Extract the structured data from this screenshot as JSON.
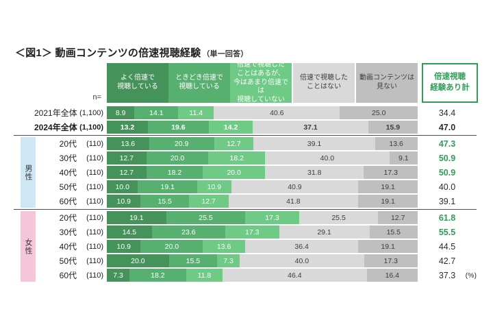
{
  "title": "＜図1＞ 動画コンテンツの倍速視聴経験",
  "title_suffix": "（単一回答）",
  "n_label": "n=",
  "total_header": "倍速視聴\n経験あり計",
  "percent_note": "(%)",
  "colors": {
    "accent_green": "#2e9e57",
    "male_strip_bg": "#cfe7f5",
    "female_strip_bg": "#f5c6da",
    "separator": "#4a4a4a",
    "gray_segment_text": "#3c3c3c"
  },
  "chart_data": {
    "type": "bar",
    "orientation": "horizontal",
    "stacked": true,
    "unit": "%",
    "xlim": [
      0,
      100
    ],
    "title": "動画コンテンツの倍速視聴経験（単一回答）",
    "segments": [
      "よく倍速で視聴している",
      "ときどき倍速で視聴している",
      "倍速で視聴したことはあるが、今はあまり倍速では視聴していない",
      "倍速で視聴したことはない",
      "動画コンテンツは見ない"
    ],
    "segment_header_labels": [
      "よく倍速で\n視聴している",
      "ときどき倍速で\n視聴している",
      "倍速で視聴した\nことはあるが、\n今はあまり倍速では\n視聴していない",
      "倍速で視聴した\nことはない",
      "動画コンテンツは\n見ない"
    ],
    "segment_colors": [
      "#45935b",
      "#57b070",
      "#6eca84",
      "#d9d9d9",
      "#bfbfbf"
    ],
    "segment_text_colors": [
      "#ffffff",
      "#ffffff",
      "#ffffff",
      "#3c3c3c",
      "#3c3c3c"
    ],
    "rows": [
      {
        "label": "2021年全体",
        "n": "(1,100)",
        "values": [
          8.9,
          14.1,
          11.4,
          40.6,
          25.0
        ],
        "total": "34.4",
        "emphasis": "none"
      },
      {
        "label": "2024年全体",
        "n": "(1,100)",
        "values": [
          13.2,
          19.6,
          14.2,
          37.1,
          15.9
        ],
        "total": "47.0",
        "emphasis": "bold"
      },
      {
        "group": "男性",
        "group_color": "#cfe7f5",
        "separator_before": true,
        "label": "20代",
        "n": "(110)",
        "values": [
          13.6,
          20.9,
          12.7,
          39.1,
          13.6
        ],
        "total": "47.3",
        "emphasis": "green"
      },
      {
        "group": "男性",
        "label": "30代",
        "n": "(110)",
        "values": [
          12.7,
          20.0,
          18.2,
          40.0,
          9.1
        ],
        "total": "50.9",
        "emphasis": "green"
      },
      {
        "group": "男性",
        "label": "40代",
        "n": "(110)",
        "values": [
          12.7,
          18.2,
          20.0,
          31.8,
          17.3
        ],
        "total": "50.9",
        "emphasis": "green"
      },
      {
        "group": "男性",
        "label": "50代",
        "n": "(110)",
        "values": [
          10.0,
          19.1,
          10.9,
          40.9,
          19.1
        ],
        "total": "40.0",
        "emphasis": "none"
      },
      {
        "group": "男性",
        "label": "60代",
        "n": "(110)",
        "values": [
          10.9,
          15.5,
          12.7,
          41.8,
          19.1
        ],
        "total": "39.1",
        "emphasis": "none"
      },
      {
        "group": "女性",
        "group_color": "#f5c6da",
        "separator_before": true,
        "label": "20代",
        "n": "(110)",
        "values": [
          19.1,
          25.5,
          17.3,
          25.5,
          12.7
        ],
        "total": "61.8",
        "emphasis": "green"
      },
      {
        "group": "女性",
        "label": "30代",
        "n": "(110)",
        "values": [
          14.5,
          23.6,
          17.3,
          29.1,
          15.5
        ],
        "total": "55.5",
        "emphasis": "green"
      },
      {
        "group": "女性",
        "label": "40代",
        "n": "(110)",
        "values": [
          10.9,
          20.0,
          13.6,
          36.4,
          19.1
        ],
        "total": "44.5",
        "emphasis": "none"
      },
      {
        "group": "女性",
        "label": "50代",
        "n": "(110)",
        "values": [
          20.0,
          15.5,
          7.3,
          40.0,
          17.3
        ],
        "total": "42.7",
        "emphasis": "none"
      },
      {
        "group": "女性",
        "label": "60代",
        "n": "(110)",
        "values": [
          7.3,
          18.2,
          11.8,
          46.4,
          16.4
        ],
        "total": "37.3",
        "emphasis": "none",
        "percent_note": true
      }
    ]
  }
}
